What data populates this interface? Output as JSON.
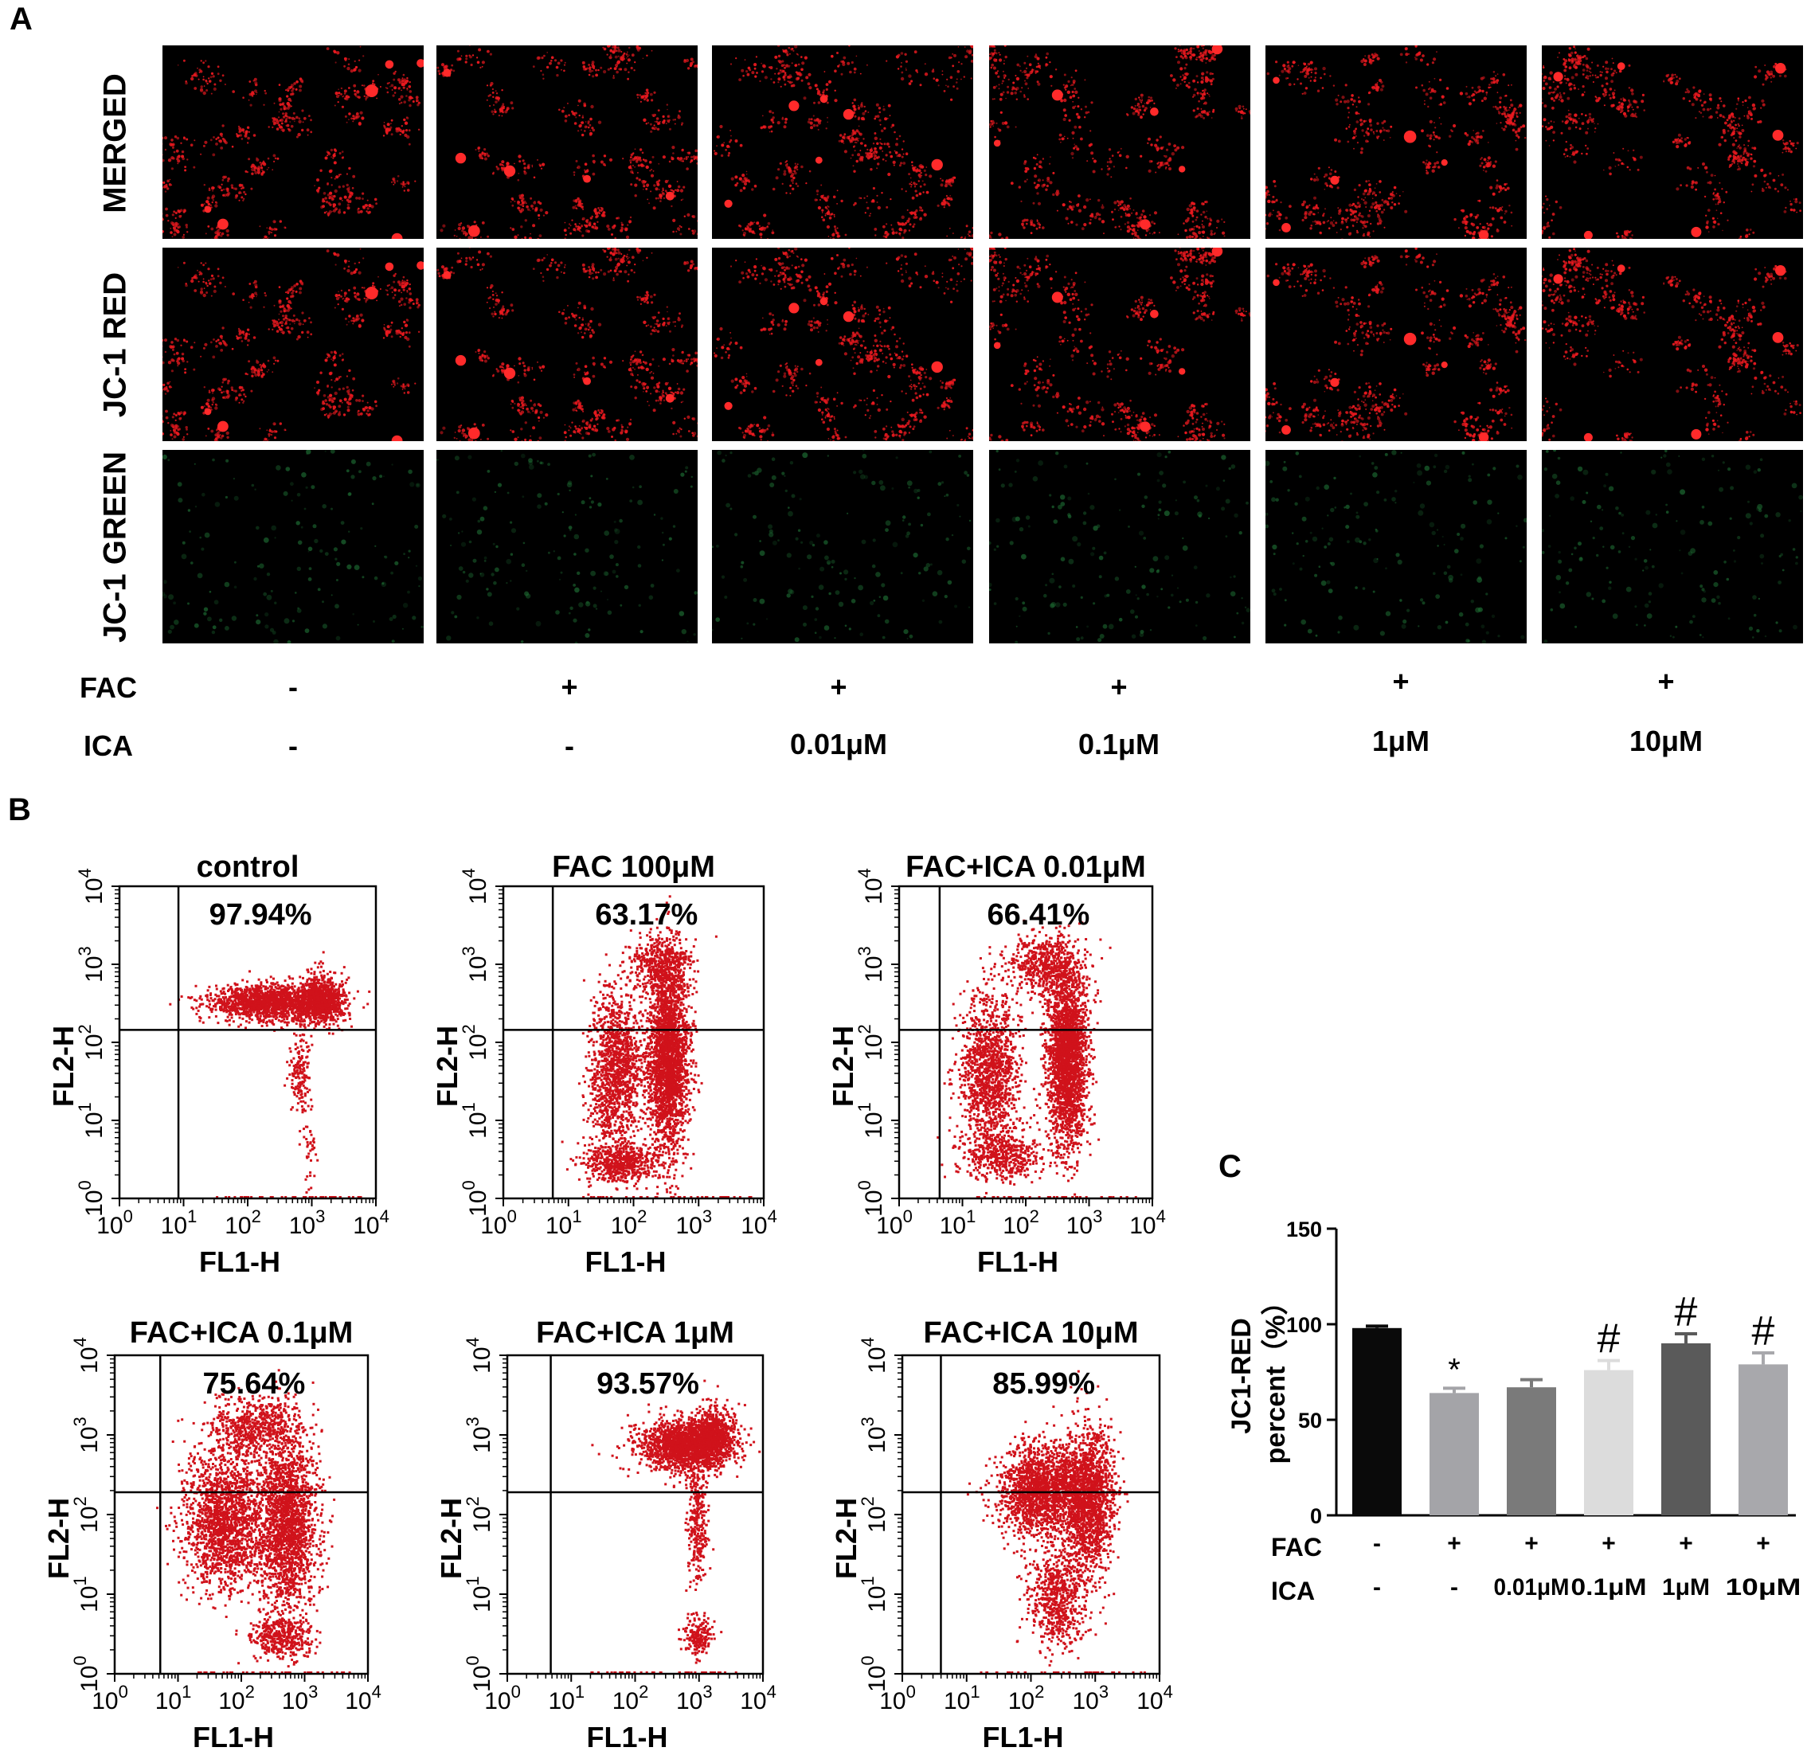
{
  "panelA": {
    "letter": "A",
    "row_labels": [
      "MERGED",
      "JC-1 RED",
      "JC-1 GREEN"
    ],
    "fac_label": "FAC",
    "ica_label": "ICA",
    "fac": [
      "-",
      "+",
      "+",
      "+",
      "+",
      "+"
    ],
    "ica": [
      "-",
      "-",
      "0.01μM",
      "0.1μM",
      "1μM",
      "10μM"
    ],
    "colors": {
      "red": "#e8191f",
      "green": "#1d6b32",
      "background": "#000000"
    }
  },
  "panelB": {
    "letter": "B",
    "plots": [
      {
        "title": "control",
        "percent": "97.94%"
      },
      {
        "title": "FAC  100μM",
        "percent": "63.17%"
      },
      {
        "title": "FAC+ICA 0.01μM",
        "percent": "66.41%"
      },
      {
        "title": "FAC+ICA 0.1μM",
        "percent": "75.64%"
      },
      {
        "title": "FAC+ICA 1μM",
        "percent": "93.57%"
      },
      {
        "title": "FAC+ICA 10μM",
        "percent": "85.99%"
      }
    ],
    "xlabel": "FL1-H",
    "ylabel": "FL2-H",
    "ticks": [
      "10",
      "10",
      "10",
      "10",
      "10"
    ],
    "exps": [
      "0",
      "1",
      "2",
      "3",
      "4"
    ],
    "dot_color": "#d0121b"
  },
  "chart_data": {
    "type": "bar",
    "letter": "C",
    "ylabel_line1": "JC1-RED",
    "ylabel_line2": "percent（%）",
    "ylim": [
      0,
      150
    ],
    "yticks": [
      "0",
      "50",
      "100",
      "150"
    ],
    "fac_label": "FAC",
    "ica_label": "ICA",
    "fac": [
      "-",
      "+",
      "+",
      "+",
      "+",
      "+"
    ],
    "ica": [
      "-",
      "-",
      "0.01μM",
      "0.1μM",
      "1μM",
      "10μM"
    ],
    "values": [
      98,
      64,
      67,
      76,
      90,
      79
    ],
    "errors": [
      1,
      2.5,
      4,
      5,
      5,
      6
    ],
    "marks": [
      "",
      "*",
      "",
      "#",
      "#",
      "#"
    ],
    "bar_colors": [
      "#0a0a0a",
      "#a4a4a8",
      "#7a7a7a",
      "#dcdcdc",
      "#5a5a5a",
      "#a8a8ac"
    ]
  }
}
